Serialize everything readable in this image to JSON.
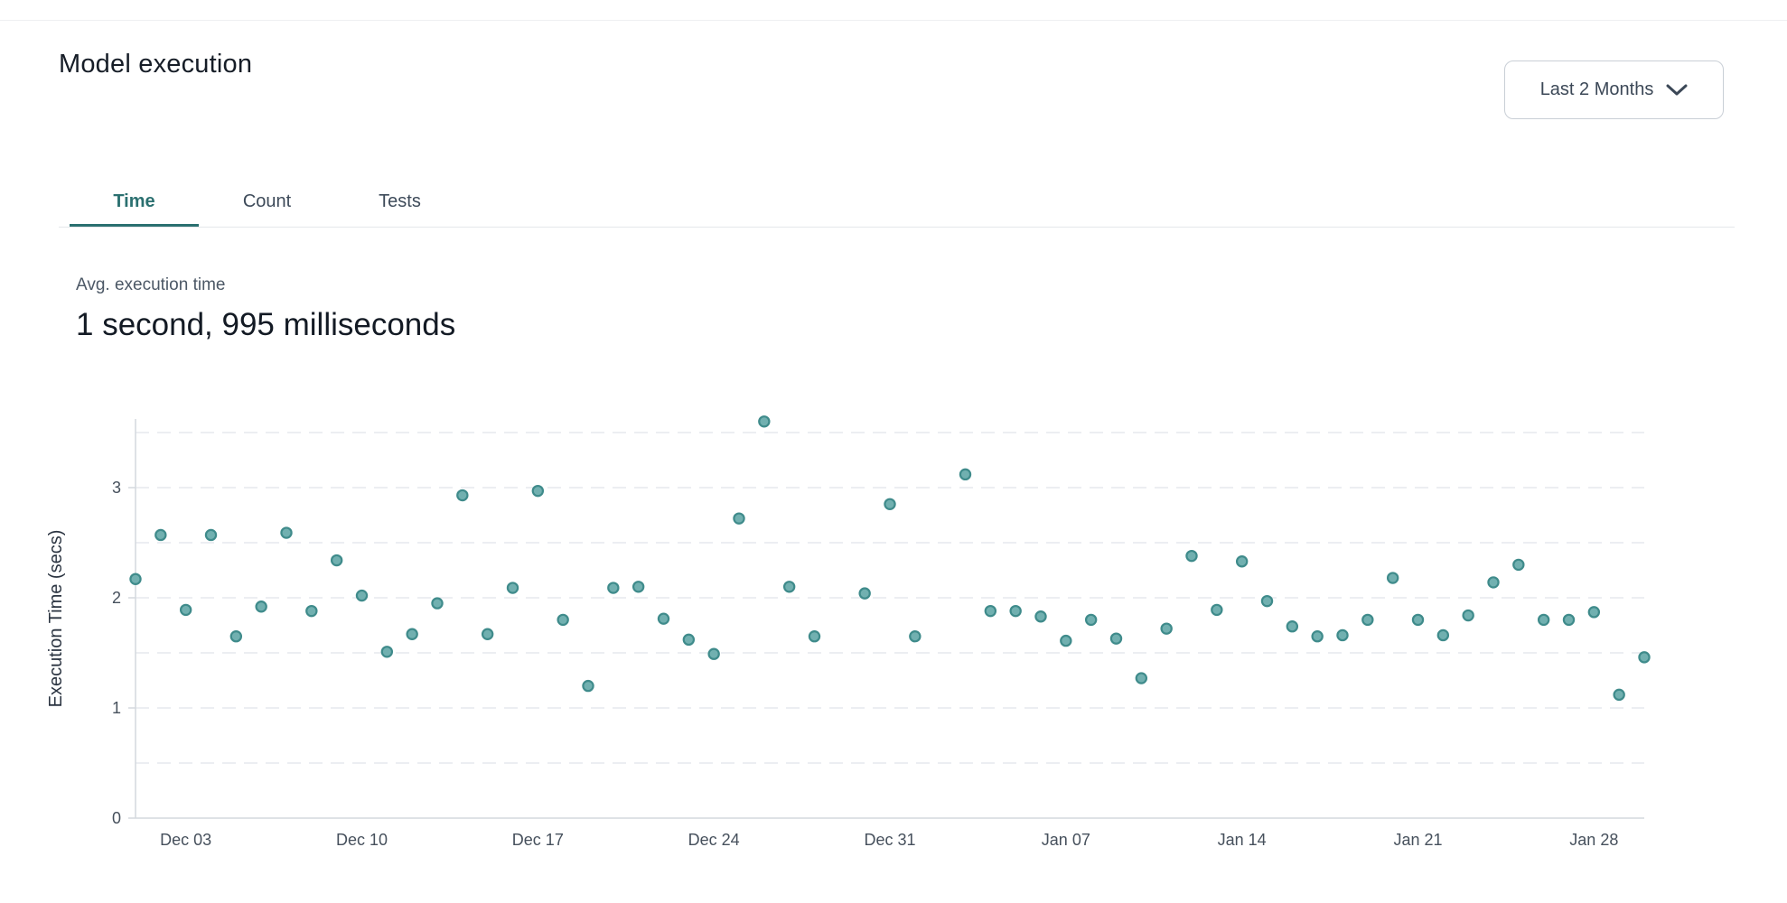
{
  "header": {
    "title": "Model execution",
    "range_selector": {
      "label": "Last 2 Months",
      "icon": "chevron-down"
    }
  },
  "tabs": [
    {
      "label": "Time",
      "active": true
    },
    {
      "label": "Count",
      "active": false
    },
    {
      "label": "Tests",
      "active": false
    }
  ],
  "summary": {
    "label": "Avg. execution time",
    "value": "1 second, 995 milliseconds"
  },
  "colors": {
    "accent": "#2b7070",
    "dot_fill": "#71b0b0",
    "dot_stroke": "#3f8b8b",
    "grid": "#e6e9ed",
    "axis": "#d4d9de",
    "tick_text": "#46505c",
    "axis_title_text": "#2a3340"
  },
  "chart_data": {
    "type": "scatter",
    "title": "",
    "xlabel": "",
    "ylabel": "Execution Time (secs)",
    "ylim": [
      0,
      3.6
    ],
    "y_ticks": [
      0,
      1,
      2,
      3
    ],
    "grid_step": 0.5,
    "grid": "dashed horizontal every 0.5, y labels on integers only",
    "legend": "none",
    "x_axis_note": "daily points from Dec 01 to Jan 30; no data for Dec 29 and Jan 02",
    "x_ticks": [
      {
        "label": "Dec 03",
        "day": 2
      },
      {
        "label": "Dec 10",
        "day": 9
      },
      {
        "label": "Dec 17",
        "day": 16
      },
      {
        "label": "Dec 24",
        "day": 23
      },
      {
        "label": "Dec 31",
        "day": 30
      },
      {
        "label": "Jan 07",
        "day": 37
      },
      {
        "label": "Jan 14",
        "day": 44
      },
      {
        "label": "Jan 21",
        "day": 51
      },
      {
        "label": "Jan 28",
        "day": 58
      }
    ],
    "points": [
      {
        "date": "Dec 01",
        "day": 0,
        "value": 2.17
      },
      {
        "date": "Dec 02",
        "day": 1,
        "value": 2.57
      },
      {
        "date": "Dec 03",
        "day": 2,
        "value": 1.89
      },
      {
        "date": "Dec 04",
        "day": 3,
        "value": 2.57
      },
      {
        "date": "Dec 05",
        "day": 4,
        "value": 1.65
      },
      {
        "date": "Dec 06",
        "day": 5,
        "value": 1.92
      },
      {
        "date": "Dec 07",
        "day": 6,
        "value": 2.59
      },
      {
        "date": "Dec 08",
        "day": 7,
        "value": 1.88
      },
      {
        "date": "Dec 09",
        "day": 8,
        "value": 2.34
      },
      {
        "date": "Dec 10",
        "day": 9,
        "value": 2.02
      },
      {
        "date": "Dec 11",
        "day": 10,
        "value": 1.51
      },
      {
        "date": "Dec 12",
        "day": 11,
        "value": 1.67
      },
      {
        "date": "Dec 13",
        "day": 12,
        "value": 1.95
      },
      {
        "date": "Dec 14",
        "day": 13,
        "value": 2.93
      },
      {
        "date": "Dec 15",
        "day": 14,
        "value": 1.67
      },
      {
        "date": "Dec 16",
        "day": 15,
        "value": 2.09
      },
      {
        "date": "Dec 17",
        "day": 16,
        "value": 2.97
      },
      {
        "date": "Dec 18",
        "day": 17,
        "value": 1.8
      },
      {
        "date": "Dec 19",
        "day": 18,
        "value": 1.2
      },
      {
        "date": "Dec 20",
        "day": 19,
        "value": 2.09
      },
      {
        "date": "Dec 21",
        "day": 20,
        "value": 2.1
      },
      {
        "date": "Dec 22",
        "day": 21,
        "value": 1.81
      },
      {
        "date": "Dec 23",
        "day": 22,
        "value": 1.62
      },
      {
        "date": "Dec 24",
        "day": 23,
        "value": 1.49
      },
      {
        "date": "Dec 25",
        "day": 24,
        "value": 2.72
      },
      {
        "date": "Dec 26",
        "day": 25,
        "value": 3.6
      },
      {
        "date": "Dec 27",
        "day": 26,
        "value": 2.1
      },
      {
        "date": "Dec 28",
        "day": 27,
        "value": 1.65
      },
      {
        "date": "Dec 30",
        "day": 29,
        "value": 2.04
      },
      {
        "date": "Dec 31",
        "day": 30,
        "value": 2.85
      },
      {
        "date": "Jan 01",
        "day": 31,
        "value": 1.65
      },
      {
        "date": "Jan 03",
        "day": 33,
        "value": 3.12
      },
      {
        "date": "Jan 04",
        "day": 34,
        "value": 1.88
      },
      {
        "date": "Jan 05",
        "day": 35,
        "value": 1.88
      },
      {
        "date": "Jan 06",
        "day": 36,
        "value": 1.83
      },
      {
        "date": "Jan 07",
        "day": 37,
        "value": 1.61
      },
      {
        "date": "Jan 08",
        "day": 38,
        "value": 1.8
      },
      {
        "date": "Jan 09",
        "day": 39,
        "value": 1.63
      },
      {
        "date": "Jan 10",
        "day": 40,
        "value": 1.27
      },
      {
        "date": "Jan 11",
        "day": 41,
        "value": 1.72
      },
      {
        "date": "Jan 12",
        "day": 42,
        "value": 2.38
      },
      {
        "date": "Jan 13",
        "day": 43,
        "value": 1.89
      },
      {
        "date": "Jan 14",
        "day": 44,
        "value": 2.33
      },
      {
        "date": "Jan 15",
        "day": 45,
        "value": 1.97
      },
      {
        "date": "Jan 16",
        "day": 46,
        "value": 1.74
      },
      {
        "date": "Jan 17",
        "day": 47,
        "value": 1.65
      },
      {
        "date": "Jan 18",
        "day": 48,
        "value": 1.66
      },
      {
        "date": "Jan 19",
        "day": 49,
        "value": 1.8
      },
      {
        "date": "Jan 20",
        "day": 50,
        "value": 2.18
      },
      {
        "date": "Jan 21",
        "day": 51,
        "value": 1.8
      },
      {
        "date": "Jan 22",
        "day": 52,
        "value": 1.66
      },
      {
        "date": "Jan 23",
        "day": 53,
        "value": 1.84
      },
      {
        "date": "Jan 24",
        "day": 54,
        "value": 2.14
      },
      {
        "date": "Jan 25",
        "day": 55,
        "value": 2.3
      },
      {
        "date": "Jan 26",
        "day": 56,
        "value": 1.8
      },
      {
        "date": "Jan 27",
        "day": 57,
        "value": 1.8
      },
      {
        "date": "Jan 28",
        "day": 58,
        "value": 1.87
      },
      {
        "date": "Jan 29",
        "day": 59,
        "value": 1.12
      },
      {
        "date": "Jan 30",
        "day": 60,
        "value": 1.46
      }
    ],
    "marker": {
      "shape": "circle",
      "fill": "#71b0b0",
      "stroke": "#3f8b8b"
    }
  }
}
